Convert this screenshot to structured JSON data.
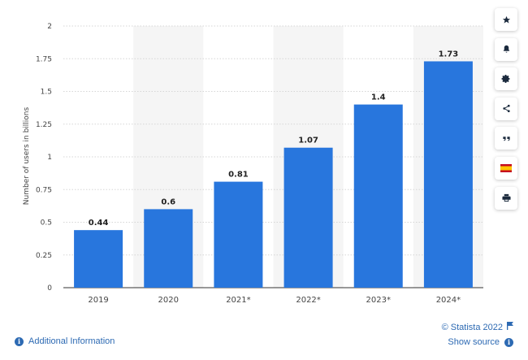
{
  "chart_data": {
    "type": "bar",
    "categories": [
      "2019",
      "2020",
      "2021*",
      "2022*",
      "2023*",
      "2024*"
    ],
    "values": [
      0.44,
      0.6,
      0.81,
      1.07,
      1.4,
      1.73
    ],
    "value_labels": [
      "0.44",
      "0.6",
      "0.81",
      "1.07",
      "1.4",
      "1.73"
    ],
    "yticks": [
      "0",
      "0.25",
      "0.5",
      "0.75",
      "1",
      "1.25",
      "1.5",
      "1.75",
      "2"
    ],
    "ylim": [
      0,
      2
    ],
    "xlabel": "",
    "ylabel": "Number of users in billions",
    "bar_color": "#2876dd",
    "band_color": "#f5f5f5",
    "grid": true,
    "shaded_bands": [
      "2020",
      "2022*",
      "2024*"
    ]
  },
  "toolbar": {
    "items": [
      {
        "name": "star-icon"
      },
      {
        "name": "bell-icon"
      },
      {
        "name": "gear-icon"
      },
      {
        "name": "share-icon"
      },
      {
        "name": "quote-icon"
      },
      {
        "name": "spain-flag-icon"
      },
      {
        "name": "print-icon"
      }
    ]
  },
  "footer": {
    "additional_info": "Additional Information",
    "copyright": "© Statista 2022",
    "show_source": "Show source",
    "link_color": "#2d6ab3"
  }
}
